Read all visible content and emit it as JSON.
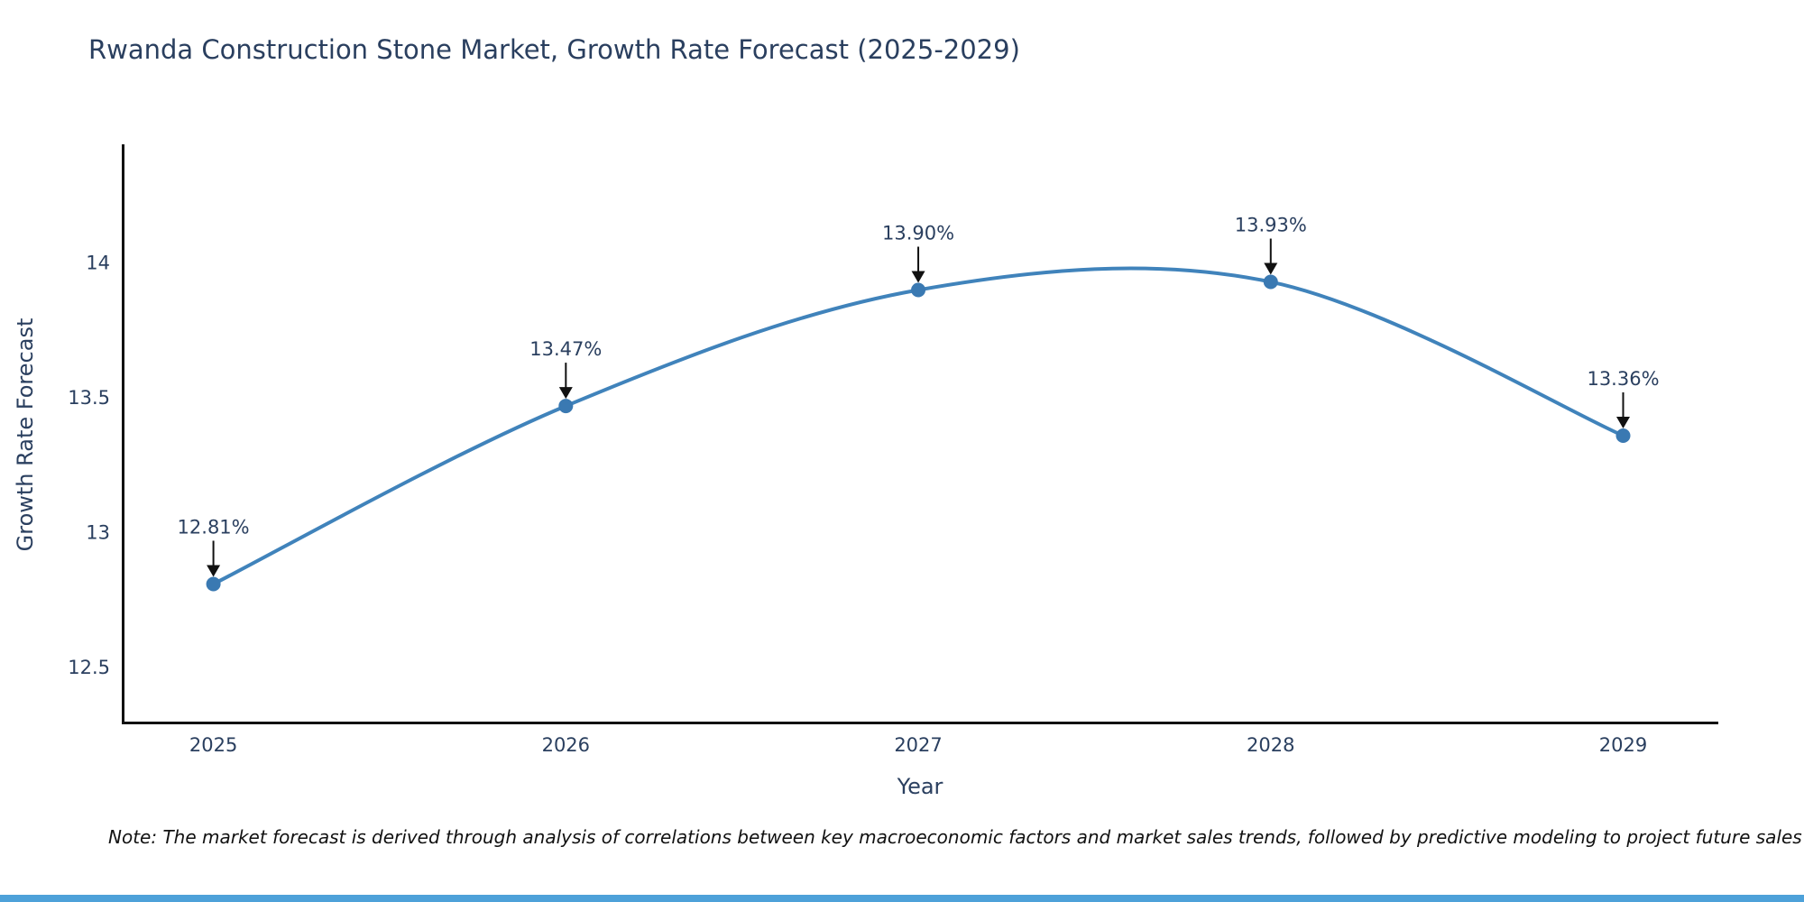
{
  "title": "Rwanda Construction Stone Market, Growth Rate Forecast (2025-2029)",
  "chart_data": {
    "type": "line",
    "title": "Rwanda Construction Stone Market, Growth Rate Forecast (2025-2029)",
    "x": [
      2025,
      2026,
      2027,
      2028,
      2029
    ],
    "values": [
      12.81,
      13.47,
      13.9,
      13.93,
      13.36
    ],
    "point_labels": [
      "12.81%",
      "13.47%",
      "13.90%",
      "13.93%",
      "13.36%"
    ],
    "xlabel": "Year",
    "ylabel": "Growth Rate Forecast",
    "x_ticks": [
      "2025",
      "2026",
      "2027",
      "2028",
      "2029"
    ],
    "y_ticks": [
      12.5,
      13,
      13.5,
      14
    ],
    "ylim": [
      12.3,
      14.44
    ],
    "xlim": [
      2024.74,
      2029.27
    ],
    "grid": false,
    "legend": false,
    "line_shape": "spline",
    "annotations_arrow": "down",
    "colors": {
      "line": "#4083bb",
      "marker": "#3a79b2",
      "axis": "#111111",
      "tick_text": "#2a3f5f",
      "annotation_text": "#2a3f5f",
      "arrow": "#111111",
      "footer_bar": "#4da1d9"
    }
  },
  "footnote": "Note: The market forecast is derived through analysis of correlations between key macroeconomic factors and market sales trends, followed by predictive modeling to project future sales"
}
